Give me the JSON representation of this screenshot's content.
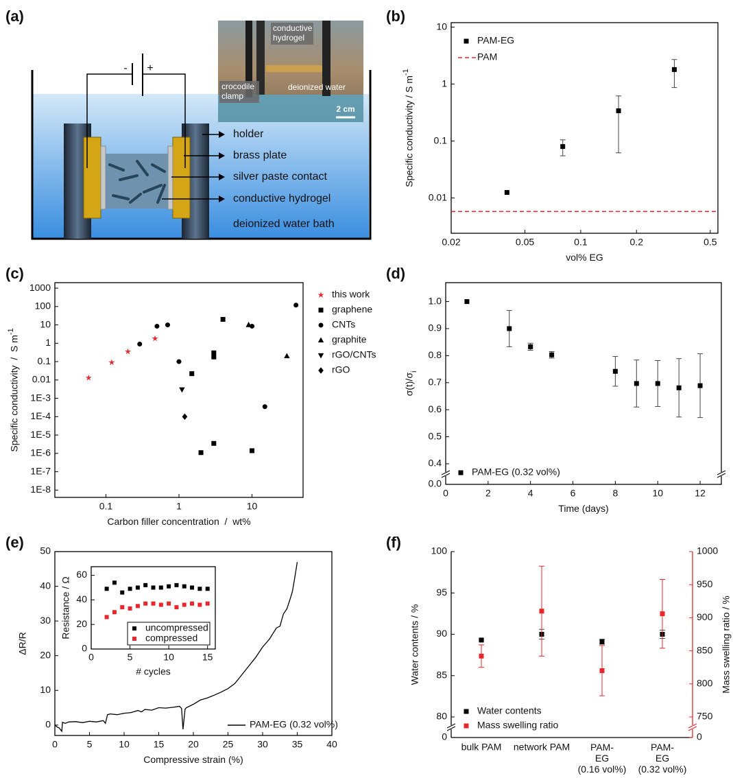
{
  "diagram": {
    "panel_label": "(a)",
    "battery": [
      "-",
      "+"
    ],
    "callouts": [
      "holder",
      "brass plate",
      "silver paste contact",
      "conductive hydrogel"
    ],
    "bath_label": "deionized water bath",
    "photo_labels": [
      "conductive\nhydrogel",
      "crocodile\nclamp",
      "deionized water",
      "2 cm"
    ]
  },
  "chart_data": [
    {
      "type": "scatter",
      "panel_label": "(b)",
      "xlabel": "vol% EG",
      "ylabel": "Specific conductivity / S m",
      "ylabel_sup": "-1",
      "xlog": true,
      "ylog": true,
      "xlim": [
        0.02,
        0.55
      ],
      "ylim": [
        0.0024,
        12
      ],
      "xticks": [
        0.02,
        0.05,
        0.1,
        0.2,
        0.5
      ],
      "yticks": [
        0.01,
        0.1,
        1,
        10
      ],
      "legend": "upper left",
      "series": [
        {
          "name": "PAM-EG",
          "color": "#000000",
          "marker": "square",
          "x": [
            0.04,
            0.08,
            0.16,
            0.32
          ],
          "values": [
            0.0125,
            0.08,
            0.34,
            1.8
          ],
          "errors_minus": [
            null,
            0.025,
            0.278,
            0.93
          ],
          "errors_plus": [
            null,
            0.025,
            0.28,
            0.9
          ]
        },
        {
          "name": "PAM",
          "color": "#e8262b",
          "style": "dashed",
          "hline": 0.0058
        }
      ]
    },
    {
      "type": "scatter",
      "panel_label": "(c)",
      "xlabel": "Carbon filler concentration  /  wt%",
      "ylabel": "Specific conductivity  /  S m",
      "ylabel_sup": "-1",
      "xlog": true,
      "ylog": true,
      "xlim": [
        0.02,
        50
      ],
      "ylim": [
        4e-09,
        2000
      ],
      "xticks": [
        0.1,
        1,
        10
      ],
      "yticks": [
        {
          "value": 1e-08,
          "label": "1E-8"
        },
        {
          "value": 1e-07,
          "label": "1E-7"
        },
        {
          "value": 1e-06,
          "label": "1E-6"
        },
        {
          "value": 1e-05,
          "label": "1E-5"
        },
        {
          "value": 0.0001,
          "label": "1E-4"
        },
        {
          "value": 0.001,
          "label": "1E-3"
        },
        0.01,
        0.1,
        1,
        10,
        100,
        1000
      ],
      "legend": "outside right",
      "legend_text_color": true,
      "series": [
        {
          "name": "this work",
          "color": "#e8262b",
          "marker": "star",
          "x": [
            0.058,
            0.12,
            0.2,
            0.47
          ],
          "values": [
            0.013,
            0.09,
            0.35,
            1.8
          ]
        },
        {
          "name": "graphene",
          "color": "#000000",
          "marker": "square",
          "x": [
            4,
            3,
            3,
            1.5,
            3,
            2,
            10
          ],
          "values": [
            20,
            0.3,
            0.18,
            0.022,
            3.5e-06,
            1.1e-06,
            1.4e-06
          ]
        },
        {
          "name": "CNTs",
          "color": "#000000",
          "marker": "circle",
          "x": [
            0.29,
            0.5,
            0.7,
            1,
            10,
            15,
            40
          ],
          "values": [
            0.9,
            8.5,
            10,
            0.1,
            8.5,
            0.00035,
            120
          ]
        },
        {
          "name": "graphite",
          "color": "#000000",
          "marker": "triangle-up",
          "x": [
            9,
            30
          ],
          "values": [
            10,
            0.2
          ]
        },
        {
          "name": "rGO/CNTs",
          "color": "#000000",
          "marker": "triangle-down",
          "x": [
            1.1
          ],
          "values": [
            0.003
          ]
        },
        {
          "name": "rGO",
          "color": "#000000",
          "marker": "diamond",
          "x": [
            1.2
          ],
          "values": [
            0.0001
          ]
        }
      ]
    },
    {
      "type": "scatter",
      "panel_label": "(d)",
      "xlabel": "Time (days)",
      "ylabel": "σ(t)/σ",
      "ylabel_sub": "i",
      "xlim": [
        0,
        13
      ],
      "ylim": [
        0,
        1.07
      ],
      "xticks": [
        0,
        2,
        4,
        6,
        8,
        10,
        12
      ],
      "yticks": [
        {
          "value": 0,
          "label": "0.0"
        },
        0.4,
        0.5,
        0.6,
        0.7,
        0.8,
        0.9,
        {
          "value": 1,
          "label": "1.0"
        }
      ],
      "axis_break": true,
      "legend": "lower left",
      "series": [
        {
          "name": "PAM-EG (0.32 vol%)",
          "color": "#000000",
          "marker": "square",
          "x": [
            1,
            3,
            4,
            5,
            8,
            9,
            10,
            11,
            12
          ],
          "values": [
            1,
            0.9,
            0.833,
            0.803,
            0.742,
            0.697,
            0.697,
            0.681,
            0.689
          ],
          "errors": [
            null,
            0.067,
            0.013,
            0.012,
            0.055,
            0.087,
            0.085,
            0.108,
            0.118
          ]
        }
      ]
    },
    {
      "type": "line",
      "panel_label": "(e)",
      "xlabel": "Compressive strain (%)",
      "ylabel": "ΔR/R",
      "xlim": [
        0,
        40
      ],
      "ylim": [
        -3,
        50
      ],
      "xticks": [
        0,
        5,
        10,
        15,
        20,
        25,
        30,
        35,
        40
      ],
      "yticks": [
        0,
        10,
        20,
        30,
        40,
        50
      ],
      "legend": "lower right",
      "series": [
        {
          "name": "PAM-EG (0.32 vol%)",
          "color": "#000000",
          "x": [
            0,
            0.3,
            0.6,
            1.0,
            1.1,
            1.5,
            2,
            3,
            4,
            5,
            6,
            7,
            7.3,
            7.6,
            8,
            9,
            10,
            11,
            12,
            12.5,
            13,
            14,
            15,
            16,
            17,
            18,
            18.3,
            18.5,
            18.8,
            19,
            20,
            21,
            22,
            23,
            24,
            25,
            26,
            27,
            28,
            29,
            30,
            31,
            32,
            32.5,
            33,
            33.5,
            34,
            34.3,
            34.6,
            35
          ],
          "values": [
            0,
            -0.5,
            -0.8,
            -1.8,
            0.8,
            0.5,
            0.9,
            1.0,
            0.7,
            1.1,
            0.9,
            1.3,
            0.5,
            3.0,
            3.2,
            3.0,
            3.4,
            3.6,
            4.2,
            3.8,
            4.5,
            4.3,
            5.0,
            4.9,
            5.1,
            5.4,
            4.8,
            -1.2,
            4.6,
            5.0,
            6.0,
            7.2,
            7.8,
            8.6,
            9.5,
            10.5,
            12.0,
            14.5,
            17.0,
            19.5,
            22.5,
            24.8,
            28.0,
            28.5,
            32.0,
            33.5,
            36.5,
            38.5,
            42.0,
            47.0
          ]
        }
      ],
      "inset": {
        "type": "scatter",
        "xlabel": "# cycles",
        "ylabel": "Resistance / Ω",
        "xlim": [
          0,
          16
        ],
        "ylim": [
          0,
          67
        ],
        "xticks": [
          0,
          5,
          10,
          15
        ],
        "yticks": [
          0,
          20,
          40,
          60
        ],
        "legend": "lower right",
        "legend_frame": true,
        "series": [
          {
            "name": "uncompressed",
            "color": "#000000",
            "marker": "square",
            "x": [
              2,
              3,
              4,
              5,
              6,
              7,
              8,
              9,
              10,
              11,
              12,
              13,
              14,
              15
            ],
            "values": [
              49,
              54,
              46,
              49,
              50,
              52,
              50,
              50,
              51,
              52,
              51,
              50,
              49,
              49
            ]
          },
          {
            "name": "compressed",
            "color": "#e8262b",
            "marker": "square",
            "x": [
              2,
              3,
              4,
              5,
              6,
              7,
              8,
              9,
              10,
              11,
              12,
              13,
              14,
              15
            ],
            "values": [
              26,
              30,
              34,
              33,
              35,
              37,
              37,
              36,
              37,
              34,
              36,
              37,
              36,
              37
            ]
          }
        ]
      }
    },
    {
      "type": "scatter",
      "panel_label": "(f)",
      "categories": [
        "bulk PAM",
        "network PAM",
        "PAM-\nEG\n(0.16 vol%)",
        "PAM-\nEG\n(0.32 vol%)"
      ],
      "ylabel": "Water contents / %",
      "y2label": "Mass swelling ratio / %",
      "ylim": [
        0,
        100
      ],
      "yticks": [
        0,
        80,
        85,
        90,
        95,
        100
      ],
      "y2lim": [
        0,
        1000
      ],
      "y2ticks": [
        0,
        750,
        800,
        850,
        900,
        950,
        1000
      ],
      "axis_break": true,
      "legend": "lower left",
      "series": [
        {
          "name": "Water contents",
          "color": "#000000",
          "marker": "square",
          "values": [
            89.3,
            90.0,
            89.1,
            90.0
          ],
          "errors": [
            0.1,
            0.6,
            0.3,
            0.5
          ]
        },
        {
          "name": "Mass swelling ratio",
          "color": "#e8262b",
          "marker": "square",
          "axis": "y2",
          "values": [
            842,
            910,
            820,
            906
          ],
          "errors": [
            17,
            68,
            38,
            52
          ]
        }
      ]
    }
  ]
}
